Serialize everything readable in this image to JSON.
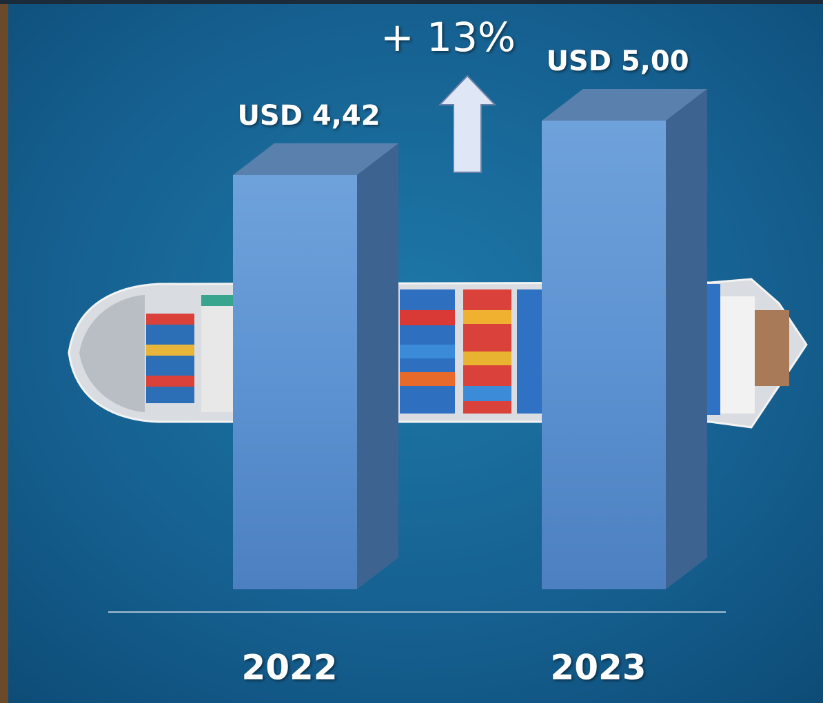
{
  "chart_data": {
    "type": "bar3d",
    "annotation": "+ 13%",
    "categories": [
      "2022",
      "2023"
    ],
    "values": [
      4.42,
      5.0
    ],
    "value_labels": [
      "USD 4,42",
      "USD 5,00"
    ],
    "color": "#5b8fd0"
  }
}
